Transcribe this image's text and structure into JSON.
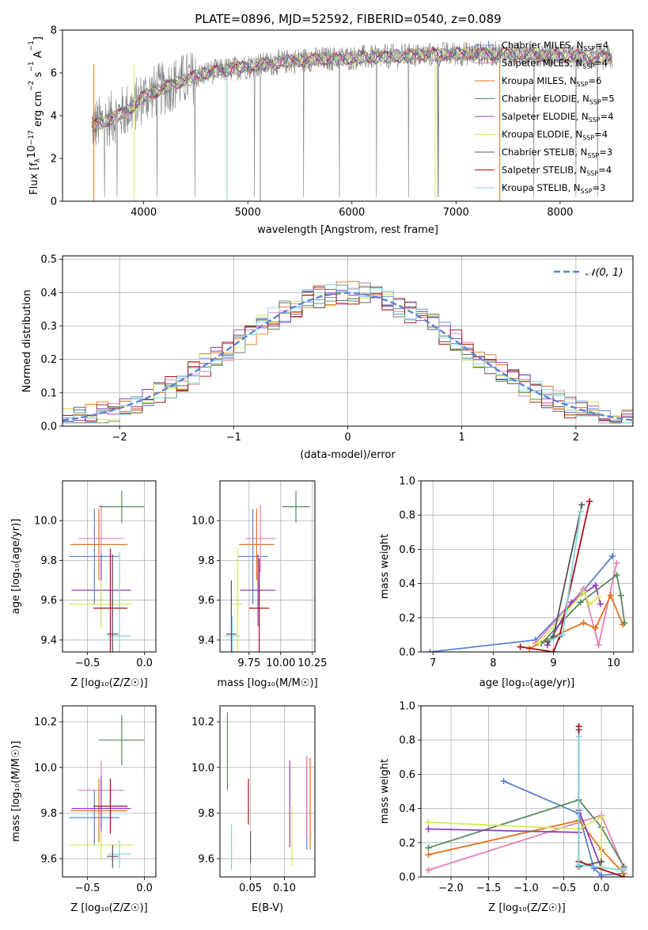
{
  "figure_title": "PLATE=0896, MJD=52592, FIBERID=0540, z=0.089",
  "colors": {
    "blue": "#5b84d8",
    "orange": "#e3731b",
    "green": "#5a8a62",
    "purple": "#8e3fbb",
    "yellow": "#d6ea5a",
    "gray": "#555555",
    "red": "#a80f1a",
    "pink": "#e87fb8",
    "cyan": "#7cd6dc"
  },
  "chart_data": [
    {
      "id": "spectrum",
      "type": "line",
      "xlabel": "wavelength [Angstrom, rest frame]",
      "ylabel": "Flux [f_λ 10^-17 erg cm^-2 s^-1 A^-1]",
      "xlim": [
        3220,
        8700
      ],
      "ylim": [
        0,
        8
      ],
      "xticks": [
        "4000",
        "5000",
        "6000",
        "7000",
        "8000"
      ],
      "yticks": [
        "0",
        "2",
        "4",
        "6",
        "8"
      ],
      "grid": false,
      "legend_position": "right",
      "data_series": {
        "name": "",
        "color": "#808080",
        "x": [
          3500,
          3700,
          3900,
          4000,
          4300,
          4600,
          5000,
          5500,
          6000,
          6500,
          7000,
          7500,
          8000,
          8500
        ],
        "y": [
          3.5,
          3.9,
          4.4,
          4.9,
          5.5,
          6.0,
          6.3,
          6.6,
          6.7,
          6.8,
          6.9,
          6.9,
          6.8,
          6.7
        ]
      },
      "legend": [
        {
          "name": "Chabrier MILES, N_SSP=4",
          "color": "#5b84d8"
        },
        {
          "name": "Salpeter MILES, N_SSP=4",
          "color": "#e87fb8"
        },
        {
          "name": "Kroupa MILES, N_SSP=6",
          "color": "#e3731b"
        },
        {
          "name": "Chabrier ELODIE, N_SSP=5",
          "color": "#5a8a62"
        },
        {
          "name": "Salpeter ELODIE, N_SSP=4",
          "color": "#8e3fbb"
        },
        {
          "name": "Kroupa ELODIE, N_SSP=4",
          "color": "#d6ea5a"
        },
        {
          "name": "Chabrier STELIB, N_SSP=3",
          "color": "#555555"
        },
        {
          "name": "Salpeter STELIB, N_SSP=4",
          "color": "#a80f1a"
        },
        {
          "name": "Kroupa STELIB, N_SSP=3",
          "color": "#7cd6dc"
        }
      ]
    },
    {
      "id": "residuals",
      "type": "line",
      "xlabel": "(data-model)/error",
      "ylabel": "Normed distribution",
      "xlim": [
        -2.5,
        2.5
      ],
      "ylim": [
        0,
        0.51
      ],
      "xticks": [
        "-2",
        "-1",
        "0",
        "1",
        "2"
      ],
      "yticks": [
        "0.0",
        "0.1",
        "0.2",
        "0.3",
        "0.4",
        "0.5"
      ],
      "grid": true,
      "legend": [
        {
          "name": "N(0,1)",
          "color": "#5b84d8",
          "style": "dashed"
        }
      ],
      "legend_position": "top-right",
      "normal_curve": {
        "mean": 0,
        "sigma": 1
      }
    },
    {
      "id": "age_vs_Z",
      "type": "scatter",
      "xlabel": "Z [log10(Z/Z_sun)]",
      "ylabel": "age [log10(age/yr)]",
      "xlim": [
        -0.72,
        0.1
      ],
      "ylim": [
        9.34,
        10.2
      ],
      "xticks": [
        "-0.5",
        "0.0"
      ],
      "yticks": [
        "9.4",
        "9.6",
        "9.8",
        "10.0"
      ],
      "grid": true,
      "points": [
        {
          "color": "#5b84d8",
          "x": -0.44,
          "y": 9.82,
          "xerr": 0.22,
          "yerr": 0.24
        },
        {
          "color": "#e3731b",
          "x": -0.4,
          "y": 9.88,
          "xerr": 0.25,
          "yerr": 0.18
        },
        {
          "color": "#e87fb8",
          "x": -0.38,
          "y": 9.91,
          "xerr": 0.2,
          "yerr": 0.17
        },
        {
          "color": "#8e3fbb",
          "x": -0.38,
          "y": 9.65,
          "xerr": 0.26,
          "yerr": 0.18
        },
        {
          "color": "#d6ea5a",
          "x": -0.38,
          "y": 9.58,
          "xerr": 0.28,
          "yerr": 0.12
        },
        {
          "color": "#5a8a62",
          "x": -0.2,
          "y": 10.07,
          "xerr": 0.2,
          "yerr": 0.08
        },
        {
          "color": "#7cd6dc",
          "x": -0.22,
          "y": 9.42,
          "xerr": 0.1,
          "yerr": 0.42
        },
        {
          "color": "#a80f1a",
          "x": -0.3,
          "y": 9.56,
          "xerr": 0.15,
          "yerr": 0.3
        },
        {
          "color": "#555555",
          "x": -0.28,
          "y": 9.43,
          "xerr": 0.05,
          "yerr": 0.4
        }
      ]
    },
    {
      "id": "age_vs_mass",
      "type": "scatter",
      "xlabel": "mass [log10(M/M_sun)]",
      "ylabel": "",
      "xlim": [
        9.52,
        10.27
      ],
      "ylim": [
        9.34,
        10.2
      ],
      "xticks": [
        "9.75",
        "10.00",
        "10.25"
      ],
      "yticks": [
        "9.4",
        "9.6",
        "9.8",
        "10.0"
      ],
      "grid": true,
      "points": [
        {
          "color": "#5b84d8",
          "x": 9.78,
          "y": 9.82,
          "xerr": 0.12,
          "yerr": 0.24
        },
        {
          "color": "#e3731b",
          "x": 9.81,
          "y": 9.88,
          "xerr": 0.14,
          "yerr": 0.18
        },
        {
          "color": "#e87fb8",
          "x": 9.84,
          "y": 9.91,
          "xerr": 0.12,
          "yerr": 0.17
        },
        {
          "color": "#8e3fbb",
          "x": 9.82,
          "y": 9.65,
          "xerr": 0.14,
          "yerr": 0.18
        },
        {
          "color": "#d6ea5a",
          "x": 9.66,
          "y": 9.58,
          "xerr": 0.04,
          "yerr": 0.28
        },
        {
          "color": "#5a8a62",
          "x": 10.12,
          "y": 10.07,
          "xerr": 0.11,
          "yerr": 0.08
        },
        {
          "color": "#7cd6dc",
          "x": 9.62,
          "y": 9.42,
          "xerr": 0.06,
          "yerr": 0.1
        },
        {
          "color": "#a80f1a",
          "x": 9.83,
          "y": 9.56,
          "xerr": 0.08,
          "yerr": 0.25
        },
        {
          "color": "#555555",
          "x": 9.61,
          "y": 9.43,
          "xerr": 0.04,
          "yerr": 0.27
        }
      ]
    },
    {
      "id": "massweight_vs_age",
      "type": "line",
      "xlabel": "age [log10(age/yr)]",
      "ylabel": "mass weight",
      "xlim": [
        6.8,
        10.32
      ],
      "ylim": [
        0,
        1
      ],
      "xticks": [
        "7",
        "8",
        "9",
        "10"
      ],
      "yticks": [
        "0.0",
        "0.2",
        "0.4",
        "0.6",
        "0.8",
        "1.0"
      ],
      "grid": true,
      "series": [
        {
          "color": "#5b84d8",
          "x": [
            6.95,
            8.7,
            9.5,
            9.98
          ],
          "y": [
            0.0,
            0.07,
            0.36,
            0.56
          ]
        },
        {
          "color": "#e87fb8",
          "x": [
            8.7,
            9.5,
            9.75,
            10.05
          ],
          "y": [
            0.05,
            0.37,
            0.04,
            0.52
          ]
        },
        {
          "color": "#e3731b",
          "x": [
            8.6,
            9.0,
            9.5,
            9.7,
            9.95,
            10.15
          ],
          "y": [
            0.02,
            0.09,
            0.17,
            0.14,
            0.33,
            0.16
          ]
        },
        {
          "color": "#5a8a62",
          "x": [
            8.8,
            9.45,
            10.05,
            10.12,
            10.18
          ],
          "y": [
            0.05,
            0.29,
            0.45,
            0.33,
            0.17
          ]
        },
        {
          "color": "#8e3fbb",
          "x": [
            8.9,
            9.3,
            9.7,
            9.78
          ],
          "y": [
            0.04,
            0.29,
            0.39,
            0.28
          ]
        },
        {
          "color": "#d6ea5a",
          "x": [
            8.75,
            9.5,
            9.6,
            9.75
          ],
          "y": [
            0.05,
            0.35,
            0.28,
            0.32
          ]
        },
        {
          "color": "#555555",
          "x": [
            8.9,
            9.0,
            9.47
          ],
          "y": [
            0.06,
            0.09,
            0.86
          ]
        },
        {
          "color": "#a80f1a",
          "x": [
            8.45,
            9.0,
            9.1,
            9.6
          ],
          "y": [
            0.03,
            0.0,
            0.09,
            0.88
          ]
        },
        {
          "color": "#7cd6dc",
          "x": [
            8.95,
            9.15,
            9.45
          ],
          "y": [
            0.07,
            0.1,
            0.82
          ]
        }
      ]
    },
    {
      "id": "mass_vs_Z",
      "type": "scatter",
      "xlabel": "Z [log10(Z/Z_sun)]",
      "ylabel": "mass [log10(M/M_sun)]",
      "xlim": [
        -0.72,
        0.1
      ],
      "ylim": [
        9.52,
        10.27
      ],
      "xticks": [
        "-0.5",
        "0.0"
      ],
      "yticks": [
        "9.6",
        "9.8",
        "10.0",
        "10.2"
      ],
      "grid": true,
      "points": [
        {
          "color": "#5b84d8",
          "x": -0.44,
          "y": 9.78,
          "xerr": 0.22,
          "yerr": 0.12
        },
        {
          "color": "#e3731b",
          "x": -0.4,
          "y": 9.81,
          "xerr": 0.25,
          "yerr": 0.14
        },
        {
          "color": "#e87fb8",
          "x": -0.38,
          "y": 9.9,
          "xerr": 0.2,
          "yerr": 0.13
        },
        {
          "color": "#8e3fbb",
          "x": -0.38,
          "y": 9.82,
          "xerr": 0.26,
          "yerr": 0.14
        },
        {
          "color": "#d6ea5a",
          "x": -0.38,
          "y": 9.66,
          "xerr": 0.28,
          "yerr": 0.06
        },
        {
          "color": "#5a8a62",
          "x": -0.2,
          "y": 10.12,
          "xerr": 0.2,
          "yerr": 0.11
        },
        {
          "color": "#7cd6dc",
          "x": -0.22,
          "y": 9.62,
          "xerr": 0.1,
          "yerr": 0.06
        },
        {
          "color": "#a80f1a",
          "x": -0.3,
          "y": 9.83,
          "xerr": 0.15,
          "yerr": 0.12
        },
        {
          "color": "#555555",
          "x": -0.28,
          "y": 9.61,
          "xerr": 0.05,
          "yerr": 0.05
        }
      ]
    },
    {
      "id": "mass_vs_EBV",
      "type": "scatter",
      "xlabel": "E(B-V)",
      "ylabel": "",
      "xlim": [
        0.005,
        0.145
      ],
      "ylim": [
        9.52,
        10.27
      ],
      "xticks": [
        "0.05",
        "0.10"
      ],
      "yticks": [
        "9.6",
        "9.8",
        "10.0",
        "10.2"
      ],
      "grid": true,
      "points": [
        {
          "color": "#5b84d8",
          "x": 0.133,
          "y": 9.84,
          "xerr": 0,
          "yerr": 0.2
        },
        {
          "color": "#e3731b",
          "x": 0.138,
          "y": 9.84,
          "xerr": 0,
          "yerr": 0.2
        },
        {
          "color": "#e87fb8",
          "x": 0.133,
          "y": 9.87,
          "xerr": 0,
          "yerr": 0.18
        },
        {
          "color": "#8e3fbb",
          "x": 0.108,
          "y": 9.84,
          "xerr": 0,
          "yerr": 0.19
        },
        {
          "color": "#d6ea5a",
          "x": 0.111,
          "y": 9.7,
          "xerr": 0,
          "yerr": 0.13
        },
        {
          "color": "#5a8a62",
          "x": 0.016,
          "y": 10.07,
          "xerr": 0,
          "yerr": 0.17
        },
        {
          "color": "#7cd6dc",
          "x": 0.022,
          "y": 9.65,
          "xerr": 0,
          "yerr": 0.1
        },
        {
          "color": "#a80f1a",
          "x": 0.047,
          "y": 9.85,
          "xerr": 0,
          "yerr": 0.1
        },
        {
          "color": "#555555",
          "x": 0.05,
          "y": 9.65,
          "xerr": 0,
          "yerr": 0.07
        }
      ]
    },
    {
      "id": "massweight_vs_Z",
      "type": "line",
      "xlabel": "Z [log10(Z/Z_sun)]",
      "ylabel": "mass weight",
      "xlim": [
        -2.4,
        0.42
      ],
      "ylim": [
        0,
        1
      ],
      "xticks": [
        "-2.0",
        "-1.5",
        "-1.0",
        "-0.5",
        "0.0"
      ],
      "yticks": [
        "0.0",
        "0.2",
        "0.4",
        "0.6",
        "0.8",
        "1.0"
      ],
      "grid": true,
      "series": [
        {
          "color": "#5b84d8",
          "x": [
            -1.3,
            -0.3,
            -0.1,
            0.0,
            0.3
          ],
          "y": [
            0.56,
            0.37,
            0.05,
            0.01,
            0.02
          ]
        },
        {
          "color": "#e87fb8",
          "x": [
            -2.3,
            0.0,
            0.3
          ],
          "y": [
            0.04,
            0.36,
            0.05
          ]
        },
        {
          "color": "#e3731b",
          "x": [
            -2.3,
            -0.3,
            0.0,
            0.3
          ],
          "y": [
            0.13,
            0.33,
            0.16,
            0.02
          ]
        },
        {
          "color": "#5a8a62",
          "x": [
            -2.3,
            -0.3,
            0.0,
            0.3
          ],
          "y": [
            0.17,
            0.45,
            0.29,
            0.06
          ]
        },
        {
          "color": "#8e3fbb",
          "x": [
            -2.3,
            -0.3,
            -0.3,
            0.0
          ],
          "y": [
            0.28,
            0.26,
            0.39,
            0.05
          ]
        },
        {
          "color": "#d6ea5a",
          "x": [
            -2.3,
            -0.3,
            0.0,
            0.0
          ],
          "y": [
            0.32,
            0.28,
            0.35,
            0.05
          ]
        },
        {
          "color": "#555555",
          "x": [
            -0.3,
            -0.3,
            0.0
          ],
          "y": [
            0.86,
            0.06,
            0.09
          ]
        },
        {
          "color": "#a80f1a",
          "x": [
            -0.3,
            -0.3,
            0.3
          ],
          "y": [
            0.88,
            0.09,
            0.0
          ]
        },
        {
          "color": "#7cd6dc",
          "x": [
            -0.3,
            -0.3,
            0.3
          ],
          "y": [
            0.82,
            0.07,
            0.04
          ]
        }
      ]
    }
  ]
}
